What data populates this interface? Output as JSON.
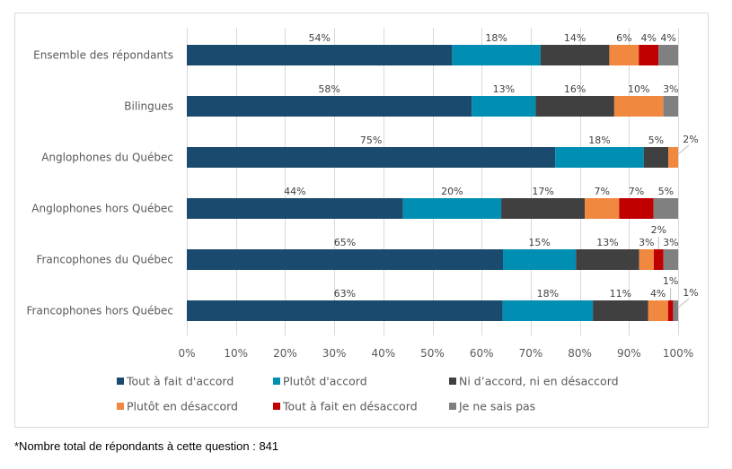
{
  "chart_data": {
    "type": "bar",
    "orientation": "horizontal",
    "stacked": "percent",
    "title": "",
    "xlabel": "",
    "ylabel": "",
    "xlim": [
      0,
      100
    ],
    "grid": true,
    "legend_position": "bottom",
    "categories": [
      "Ensemble des répondants",
      "Bilingues",
      "Anglophones du Québec",
      "Anglophones hors Québec",
      "Francophones du Québec",
      "Francophones hors Québec"
    ],
    "x_ticks": [
      "0%",
      "10%",
      "20%",
      "30%",
      "40%",
      "50%",
      "60%",
      "70%",
      "80%",
      "90%",
      "100%"
    ],
    "series": [
      {
        "name": "Tout à fait d'accord",
        "color": "#1a4a6e",
        "values": [
          54,
          58,
          75,
          44,
          65,
          63
        ],
        "labels": [
          "54%",
          "58%",
          "75%",
          "44%",
          "65%",
          "63%"
        ]
      },
      {
        "name": "Plutôt d'accord",
        "color": "#008eb2",
        "values": [
          18,
          13,
          18,
          20,
          15,
          18
        ],
        "labels": [
          "18%",
          "13%",
          "18%",
          "20%",
          "15%",
          "18%"
        ]
      },
      {
        "name": "Ni d’accord, ni en désaccord",
        "color": "#404040",
        "values": [
          14,
          16,
          5,
          17,
          13,
          11
        ],
        "labels": [
          "14%",
          "16%",
          "5%",
          "17%",
          "13%",
          "11%"
        ]
      },
      {
        "name": "Plutôt en désaccord",
        "color": "#f08840",
        "values": [
          6,
          10,
          2,
          7,
          3,
          4
        ],
        "labels": [
          "6%",
          "10%",
          "2%",
          "7%",
          "3%",
          "4%"
        ]
      },
      {
        "name": "Tout à fait en désaccord",
        "color": "#c00000",
        "values": [
          4,
          0,
          0,
          7,
          2,
          1
        ],
        "labels": [
          "4%",
          "",
          "",
          "7%",
          "2%",
          "1%"
        ]
      },
      {
        "name": "Je ne sais pas",
        "color": "#808080",
        "values": [
          4,
          3,
          0,
          5,
          3,
          1
        ],
        "labels": [
          "4%",
          "3%",
          "",
          "5%",
          "3%",
          "1%"
        ]
      }
    ]
  },
  "footnote": "*Nombre total de répondants à cette question : 841"
}
